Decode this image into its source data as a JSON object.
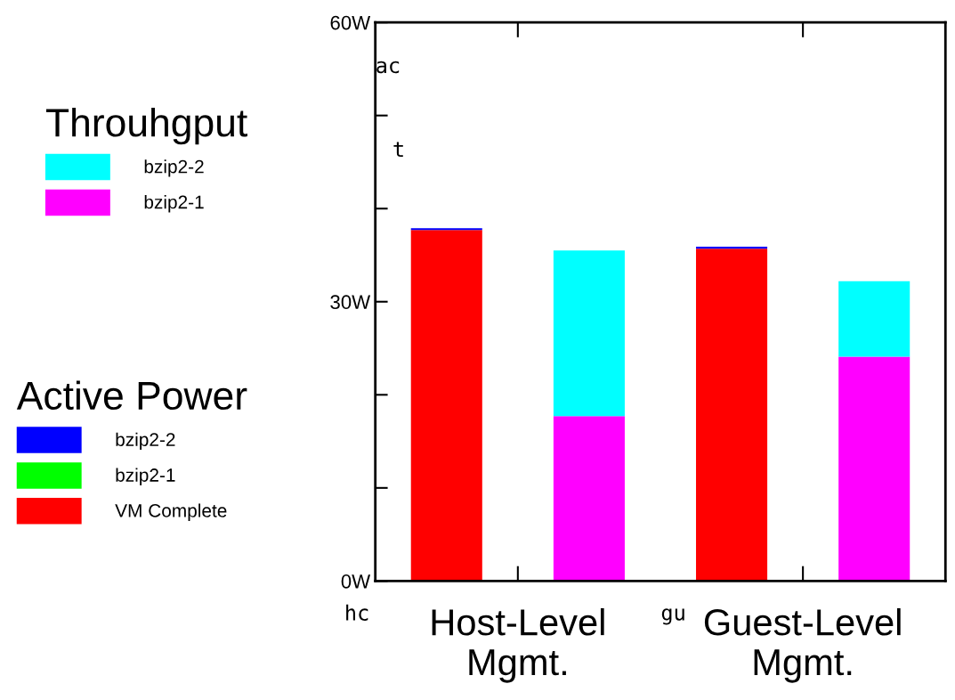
{
  "chart_data": {
    "type": "bar",
    "stacked": true,
    "categories": [
      "Host-Level\nMgmt.",
      null,
      "Guest-Level\nMgmt.",
      null
    ],
    "series": [
      {
        "name": "VM Complete",
        "color": "#ff0000",
        "values": [
          37.7,
          null,
          35.7,
          null
        ]
      },
      {
        "name": "bzip2-1",
        "color": "#00ff00",
        "values": [
          0,
          null,
          0,
          null
        ]
      },
      {
        "name": "bzip2-2",
        "color": "#0000ff",
        "values": [
          0.2,
          null,
          0.2,
          null
        ]
      },
      {
        "name": "bzip2-1",
        "color": "#ff00ff",
        "values": [
          null,
          17.7,
          null,
          24.1
        ]
      },
      {
        "name": "bzip2-2",
        "color": "#00ffff",
        "values": [
          null,
          17.8,
          null,
          8.1
        ]
      }
    ],
    "ylim": [
      0,
      60
    ],
    "yticks": [
      {
        "value": 0,
        "label": "0W"
      },
      {
        "value": 10,
        "label": null
      },
      {
        "value": 20,
        "label": null
      },
      {
        "value": 30,
        "label": "30W"
      },
      {
        "value": 40,
        "label": null
      },
      {
        "value": 50,
        "label": null
      },
      {
        "value": 60,
        "label": "60W"
      }
    ],
    "legend": "left",
    "legend_title": [
      "Throuhgput",
      "Active Power"
    ],
    "annotations": [
      "ac",
      "t",
      "hc",
      "gu"
    ]
  }
}
